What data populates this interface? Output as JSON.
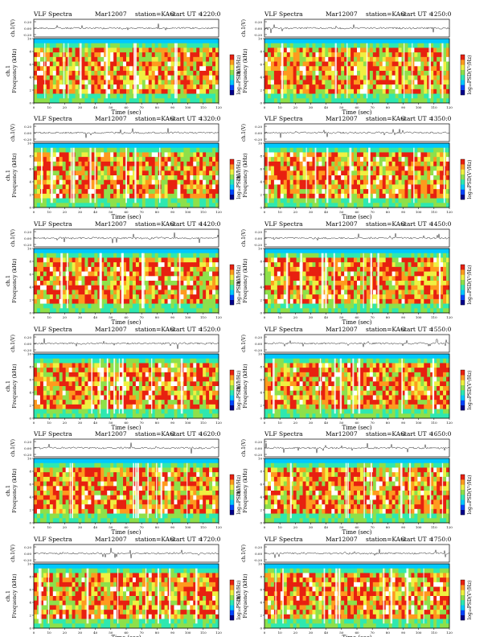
{
  "colors": {
    "background": "#ffffff",
    "spectrogram_scale": [
      "#00008a",
      "#0044ff",
      "#00c8ff",
      "#2ee8b0",
      "#8ee04a",
      "#f0f040",
      "#ff9a1e",
      "#e82010",
      "#ffffff"
    ]
  },
  "common": {
    "instrument_title": "VLF Spectra",
    "date": "Mar12007",
    "station": "station=KAG",
    "start_prefix": "start  UT  =",
    "waveform_ylabel": "ch.1(V)",
    "waveform_ticks": [
      "0.20",
      "0.00",
      "-0.20"
    ],
    "spec_ylabel_top": "ch.1",
    "spec_ylabel": "Frequency (kHz)",
    "freq_ticks": [
      "0",
      "2",
      "4",
      "6",
      "8",
      "10"
    ],
    "time_ticks": [
      "0",
      "10",
      "20",
      "30",
      "40",
      "50",
      "60",
      "70",
      "80",
      "90",
      "100",
      "110",
      "120"
    ],
    "xlabel": "Time (sec)",
    "colorbar_label": "log₁₀PSD(V²/Hz)"
  },
  "panels": [
    {
      "start": "1220:0"
    },
    {
      "start": "1250:0"
    },
    {
      "start": "1320:0"
    },
    {
      "start": "1350:0"
    },
    {
      "start": "1420:0"
    },
    {
      "start": "1450:0"
    },
    {
      "start": "1520:0"
    },
    {
      "start": "1550:0"
    },
    {
      "start": "1620:0"
    },
    {
      "start": "1650:0"
    },
    {
      "start": "1720:0"
    },
    {
      "start": "1750:0"
    }
  ],
  "chart_data": {
    "type": "heatmap",
    "panel_count": 12,
    "x": {
      "label": "Time (sec)",
      "range": [
        0,
        120
      ]
    },
    "y_spectrogram": {
      "label": "Frequency (kHz)",
      "range": [
        0,
        10
      ]
    },
    "y_waveform": {
      "label": "ch.1(V)",
      "range": [
        -0.2,
        0.2
      ]
    },
    "color_quantity": "log10 PSD (V^2/Hz)",
    "start_times_UT": [
      "1220:0",
      "1250:0",
      "1320:0",
      "1350:0",
      "1420:0",
      "1450:0",
      "1520:0",
      "1550:0",
      "1620:0",
      "1650:0",
      "1720:0",
      "1750:0"
    ]
  }
}
